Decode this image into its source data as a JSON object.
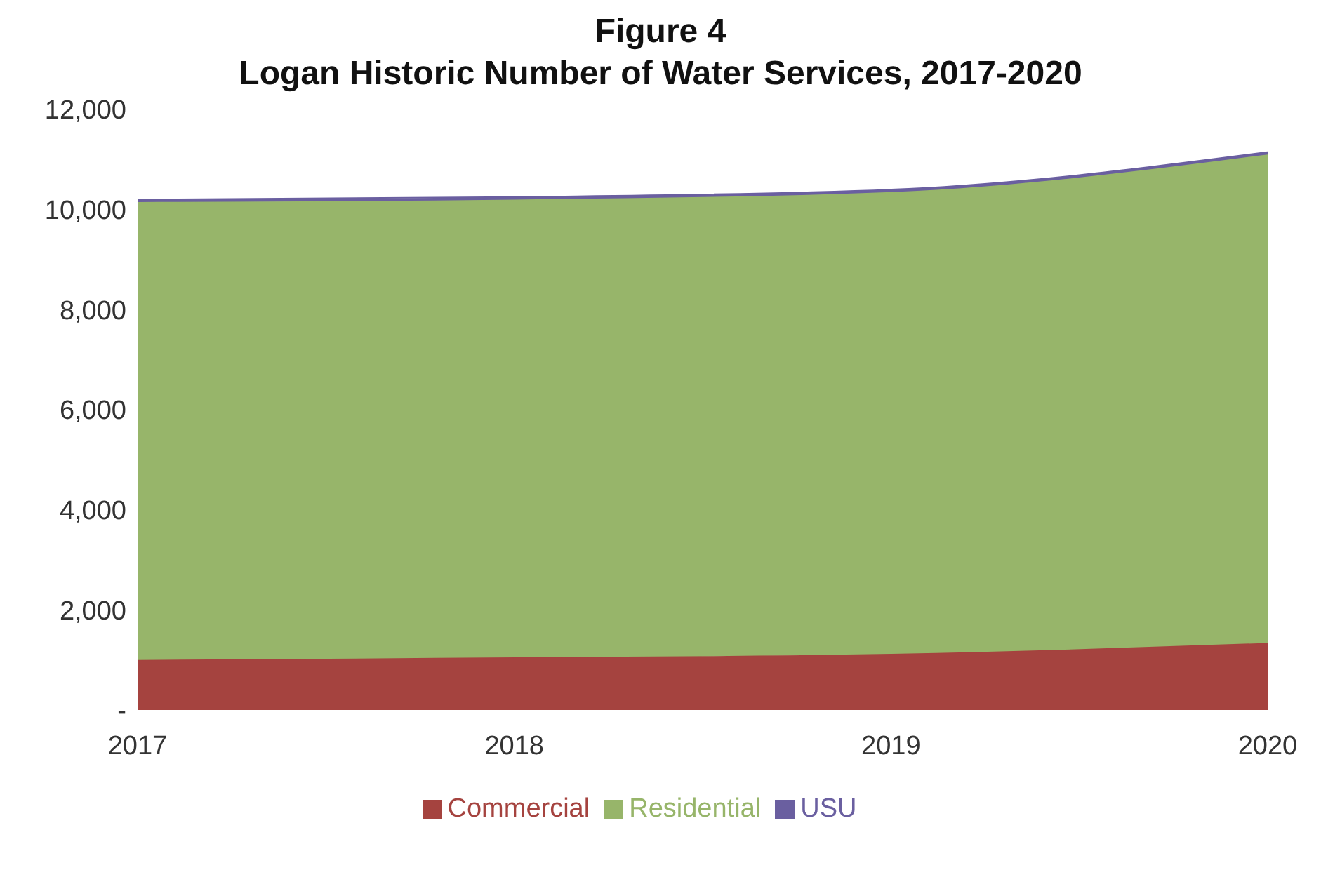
{
  "chart_data": {
    "type": "area",
    "title": "Figure 4\nLogan Historic Number of Water Services, 2017-2020",
    "categories": [
      "2017",
      "2018",
      "2019",
      "2020"
    ],
    "stacked": true,
    "series": [
      {
        "name": "Commercial",
        "color": "#a5433f",
        "values": [
          1000,
          1050,
          1120,
          1340
        ]
      },
      {
        "name": "Residential",
        "color": "#97b56a",
        "values": [
          9150,
          9150,
          9230,
          9760
        ]
      },
      {
        "name": "USU",
        "color": "#6a5fa0",
        "values": [
          50,
          50,
          50,
          50
        ]
      }
    ],
    "ylim": [
      0,
      12000
    ],
    "yticks": [
      {
        "value": 0,
        "label": "-"
      },
      {
        "value": 2000,
        "label": "2,000"
      },
      {
        "value": 4000,
        "label": "4,000"
      },
      {
        "value": 6000,
        "label": "6,000"
      },
      {
        "value": 8000,
        "label": "8,000"
      },
      {
        "value": 10000,
        "label": "10,000"
      },
      {
        "value": 12000,
        "label": "12,000"
      }
    ],
    "grid": false,
    "legend": "bottom"
  }
}
